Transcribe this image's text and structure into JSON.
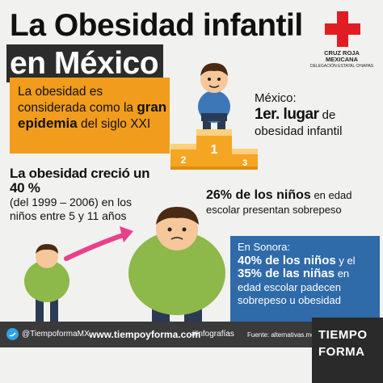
{
  "title": {
    "line1": "La Obesidad infantil",
    "line2": "en México"
  },
  "logo": {
    "name_line1": "CRUZ ROJA",
    "name_line2": "MEXICANA",
    "delegation": "DELEGACIÓN ESTATAL CHIAPAS",
    "cross_color": "#e21c23",
    "icon": "red-cross-icon"
  },
  "epidemic": {
    "pre": "La obesidad es considerada como la",
    "highlight": "gran epidemia",
    "post": "del siglo XXI",
    "bg": "#f19c1c"
  },
  "mexico": {
    "label": "México:",
    "rank": "1er. lugar",
    "rank_suffix": "de",
    "line3": "obesidad infantil"
  },
  "podium": {
    "p1": "1",
    "p2": "2",
    "p3": "3"
  },
  "growth": {
    "headline": "La obesidad creció un 40 %",
    "detail": "(del 1999 – 2006) en los niños entre 5 y 11 años"
  },
  "school": {
    "highlight": "26% de los niños",
    "text1": "en edad",
    "text2": "escolar presentan sobrepeso"
  },
  "sonora": {
    "label": "En Sonora:",
    "boys": "40% de los niños",
    "and": "y el",
    "girls": "35% de las niñas",
    "in": "en",
    "rest": "edad escolar padecen sobrepeso u obesidad",
    "bg": "#2f6aa9"
  },
  "footer": {
    "twitter": "@TiempoformaMX",
    "website": "www.tiempoyforma.com",
    "tag": "#Infografías",
    "source": "Fuente: alternativas.me",
    "brand1": "TIEMPO",
    "brand2": "FORMA"
  }
}
